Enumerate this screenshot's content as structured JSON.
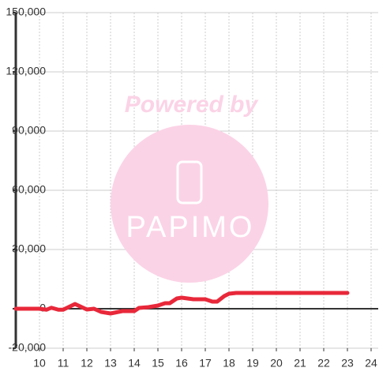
{
  "chart_data": {
    "type": "line",
    "x": [
      9.0,
      10,
      10.3,
      10.5,
      10.8,
      11,
      11.5,
      12,
      12.3,
      12.6,
      13,
      13.5,
      14,
      14.2,
      14.6,
      15,
      15.3,
      15.5,
      15.8,
      16,
      16.5,
      17,
      17.3,
      17.5,
      17.8,
      18,
      18.3,
      23
    ],
    "series": [
      {
        "color": "#e8283a",
        "values": [
          0,
          0,
          -500,
          500,
          -500,
          -500,
          2400,
          -400,
          0,
          -1600,
          -2400,
          -1200,
          -1200,
          400,
          800,
          1600,
          2800,
          2800,
          5200,
          5600,
          4800,
          4800,
          3600,
          3600,
          6400,
          7600,
          8000,
          8000
        ]
      }
    ],
    "xlim": [
      9,
      24.3
    ],
    "xticks": [
      10,
      11,
      12,
      13,
      14,
      15,
      16,
      17,
      18,
      19,
      20,
      21,
      22,
      23,
      24
    ],
    "ylim": [
      -20000,
      150000
    ],
    "yticks": [
      {
        "value": -20000,
        "label": "-20,000"
      },
      0,
      {
        "value": 30000,
        "label": "30,000"
      },
      {
        "value": 60000,
        "label": "60,000"
      },
      {
        "value": 90000,
        "label": "90,000"
      },
      {
        "value": 120000,
        "label": "120,000"
      },
      {
        "value": 150000,
        "label": "150,000"
      }
    ],
    "grid": true
  },
  "watermark": {
    "title": "Powered by",
    "logo": "PAPIMO"
  }
}
